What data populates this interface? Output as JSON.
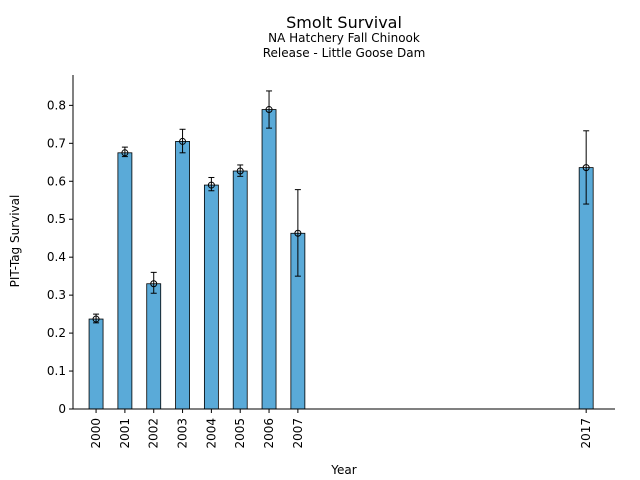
{
  "chart_data": {
    "type": "bar",
    "title": "Smolt Survival",
    "subtitle_lines": [
      "NA Hatchery Fall Chinook",
      "Release - Little Goose Dam"
    ],
    "xlabel": "Year",
    "ylabel": "PIT-Tag Survival",
    "ylim": [
      0,
      0.88
    ],
    "xlim": [
      1999.2,
      2018
    ],
    "yticks": [
      0,
      0.1,
      0.2,
      0.3,
      0.4,
      0.5,
      0.6,
      0.7,
      0.8
    ],
    "ytick_labels": [
      "0",
      "0.1",
      "0.2",
      "0.3",
      "0.4",
      "0.5",
      "0.6",
      "0.7",
      "0.8"
    ],
    "x": [
      2000,
      2001,
      2002,
      2003,
      2004,
      2005,
      2006,
      2007,
      2017
    ],
    "x_labels": [
      "2000",
      "2001",
      "2002",
      "2003",
      "2004",
      "2005",
      "2006",
      "2007",
      "2017"
    ],
    "values": [
      0.237,
      0.675,
      0.33,
      0.705,
      0.59,
      0.627,
      0.789,
      0.463,
      0.636
    ],
    "error_lower": [
      0.227,
      0.665,
      0.305,
      0.675,
      0.575,
      0.613,
      0.74,
      0.35,
      0.54
    ],
    "error_upper": [
      0.25,
      0.69,
      0.36,
      0.737,
      0.61,
      0.643,
      0.838,
      0.578,
      0.733
    ],
    "bar_color": "#5aaad8",
    "edge_color": "#000000",
    "grid": false,
    "legend": "none"
  }
}
